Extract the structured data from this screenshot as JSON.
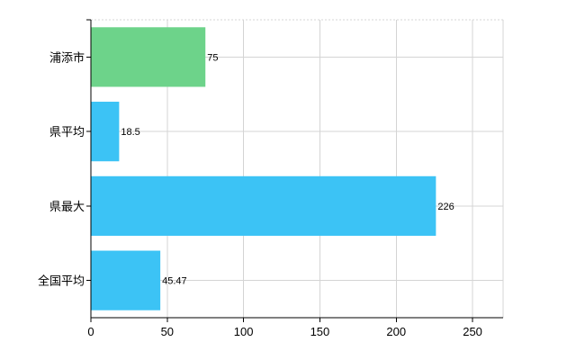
{
  "chart_data": {
    "type": "bar",
    "orientation": "horizontal",
    "categories": [
      "浦添市",
      "県平均",
      "県最大",
      "全国平均"
    ],
    "values": [
      75,
      18.5,
      226,
      45.47
    ],
    "value_labels": [
      "75",
      "18.5",
      "226",
      "45.47"
    ],
    "bar_colors": [
      "#6dd38a",
      "#3cc3f5",
      "#3cc3f5",
      "#3cc3f5"
    ],
    "xlim": [
      0,
      270
    ],
    "xticks": [
      0,
      50,
      100,
      150,
      200,
      250
    ],
    "xtick_labels": [
      "0",
      "50",
      "100",
      "150",
      "200",
      "250"
    ],
    "grid": true,
    "title": "",
    "xlabel": "",
    "ylabel": ""
  }
}
